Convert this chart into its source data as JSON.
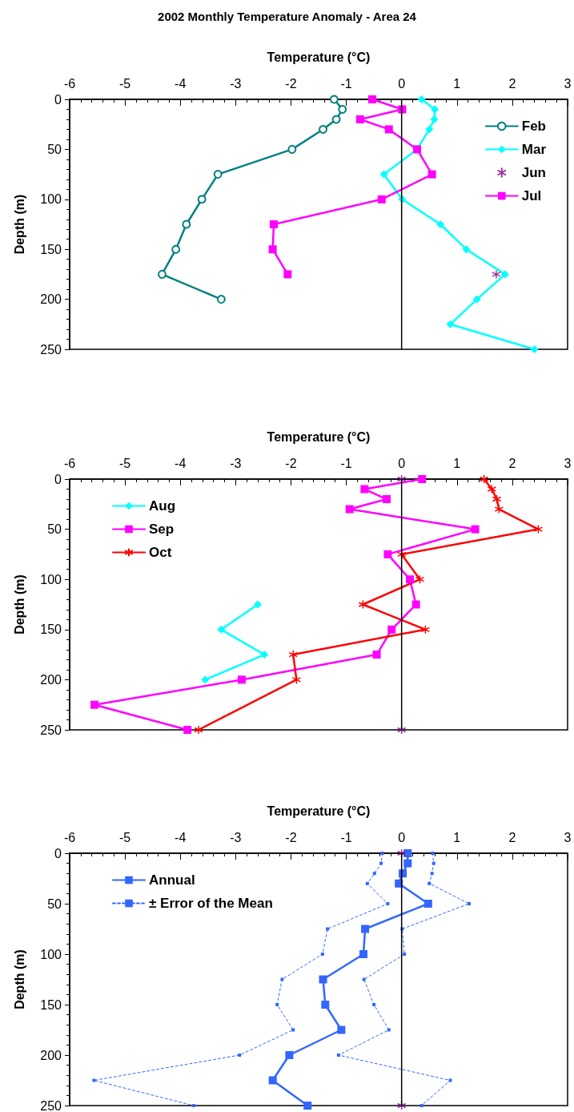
{
  "chart_data": [
    {
      "type": "line",
      "title": "2002 Monthly Temperature Anomaly - Area 24",
      "xlabel": "Temperature (°C)",
      "ylabel": "Depth (m)",
      "xlim": [
        -6,
        3
      ],
      "xticks": [
        -6,
        -5,
        -4,
        -3,
        -2,
        -1,
        0,
        1,
        2,
        3
      ],
      "ylim": [
        250,
        0
      ],
      "yticks": [
        0,
        50,
        100,
        150,
        200,
        250
      ],
      "legend": "top right",
      "ref_lines": [
        {
          "axis": "x",
          "value": 0,
          "color": "#000000"
        }
      ],
      "series": [
        {
          "name": "Feb",
          "color": "#008080",
          "marker": "circle",
          "x": [
            -1.22,
            -1.07,
            -1.18,
            -1.42,
            -1.98,
            -3.32,
            -3.61,
            -3.89,
            -4.08,
            -4.33,
            -3.26
          ],
          "values": [
            0,
            10,
            20,
            30,
            50,
            75,
            100,
            125,
            150,
            175,
            200
          ]
        },
        {
          "name": "Mar",
          "color": "#00ffff",
          "marker": "diamond",
          "x": [
            0.36,
            0.6,
            0.59,
            0.5,
            0.28,
            -0.32,
            0.01,
            0.7,
            1.17,
            1.87,
            1.36,
            0.88,
            2.4
          ],
          "values": [
            0,
            10,
            20,
            30,
            50,
            75,
            100,
            125,
            150,
            175,
            200,
            225,
            250
          ]
        },
        {
          "name": "Jun",
          "color": "#800080",
          "type": "scatter",
          "marker": "cross",
          "x": [
            1.71
          ],
          "values": [
            175
          ]
        },
        {
          "name": "Jul",
          "color": "#ff00ff",
          "marker": "square",
          "x": [
            -0.53,
            0.01,
            -0.75,
            -0.23,
            0.28,
            0.55,
            -0.36,
            -2.31,
            -2.33,
            -2.06
          ],
          "values": [
            0,
            10,
            20,
            30,
            50,
            75,
            100,
            125,
            150,
            175
          ]
        }
      ]
    },
    {
      "type": "line",
      "xlabel": "Temperature (°C)",
      "ylabel": "Depth (m)",
      "xlim": [
        -6,
        3
      ],
      "xticks": [
        -6,
        -5,
        -4,
        -3,
        -2,
        -1,
        0,
        1,
        2,
        3
      ],
      "ylim": [
        250,
        0
      ],
      "yticks": [
        0,
        50,
        100,
        150,
        200,
        250
      ],
      "legend": "top left",
      "ref_lines": [
        {
          "axis": "x",
          "value": 0,
          "color": "#000000"
        }
      ],
      "series": [
        {
          "name": "Aug",
          "color": "#00ffff",
          "marker": "diamond",
          "x": [
            -2.6,
            -3.26,
            -2.48,
            -3.55
          ],
          "values": [
            125,
            150,
            175,
            200
          ]
        },
        {
          "name": "Sep",
          "color": "#ff00ff",
          "marker": "square",
          "x": [
            0.37,
            -0.67,
            -0.27,
            -0.94,
            1.33,
            -0.25,
            0.15,
            0.26,
            -0.18,
            -0.45,
            -2.89,
            -5.55,
            -3.87
          ],
          "values": [
            0,
            10,
            20,
            30,
            50,
            75,
            100,
            125,
            150,
            175,
            200,
            225,
            250
          ]
        },
        {
          "name": "Oct",
          "color": "#ff0000",
          "marker": "cross",
          "x": [
            1.49,
            1.63,
            1.72,
            1.76,
            2.47,
            0,
            0.33,
            -0.7,
            0.43,
            -1.96,
            -1.9,
            -3.67
          ],
          "values": [
            0,
            10,
            20,
            30,
            50,
            75,
            100,
            125,
            150,
            175,
            200,
            250
          ]
        },
        {
          "color": "#800080",
          "type": "scatter",
          "marker": "cross",
          "x": [
            0,
            0
          ],
          "values": [
            0,
            250
          ]
        }
      ]
    },
    {
      "type": "line",
      "xlabel": "Temperature (°C)",
      "ylabel": "Depth (m)",
      "xlim": [
        -6,
        3
      ],
      "xticks": [
        -6,
        -5,
        -4,
        -3,
        -2,
        -1,
        0,
        1,
        2,
        3
      ],
      "ylim": [
        250,
        0
      ],
      "yticks": [
        0,
        50,
        100,
        150,
        200,
        250
      ],
      "legend": "top left",
      "ref_lines": [
        {
          "axis": "x",
          "value": 0,
          "color": "#000000"
        }
      ],
      "series": [
        {
          "name": "Annual",
          "color": "#3366ff",
          "marker": "square",
          "x": [
            0.11,
            0.11,
            0.02,
            -0.05,
            0.48,
            -0.66,
            -0.69,
            -1.42,
            -1.38,
            -1.09,
            -2.03,
            -2.33,
            -1.7
          ],
          "values": [
            0,
            10,
            20,
            30,
            50,
            75,
            100,
            125,
            150,
            175,
            200,
            225,
            250
          ]
        },
        {
          "name": "± Error of the Mean",
          "color": "#3366ff",
          "marker": "square",
          "line_style": "dashed",
          "x": [
            -0.35,
            -0.37,
            -0.49,
            -0.62,
            -0.25,
            -1.34,
            -1.43,
            -2.16,
            -2.25,
            -1.96,
            -2.93,
            -5.56,
            -3.76
          ],
          "values": [
            0,
            10,
            20,
            30,
            50,
            75,
            100,
            125,
            150,
            175,
            200,
            225,
            250
          ]
        },
        {
          "color": "#3366ff",
          "marker": "square",
          "line_style": "dashed",
          "x": [
            0.56,
            0.58,
            0.55,
            0.5,
            1.22,
            0.01,
            0.05,
            -0.68,
            -0.5,
            -0.23,
            -1.14,
            0.88,
            0.36
          ],
          "values": [
            0,
            10,
            20,
            30,
            50,
            75,
            100,
            125,
            150,
            175,
            200,
            225,
            250
          ]
        },
        {
          "color": "#800080",
          "type": "scatter",
          "marker": "cross",
          "x": [
            0,
            0
          ],
          "values": [
            0,
            250
          ]
        }
      ]
    }
  ]
}
